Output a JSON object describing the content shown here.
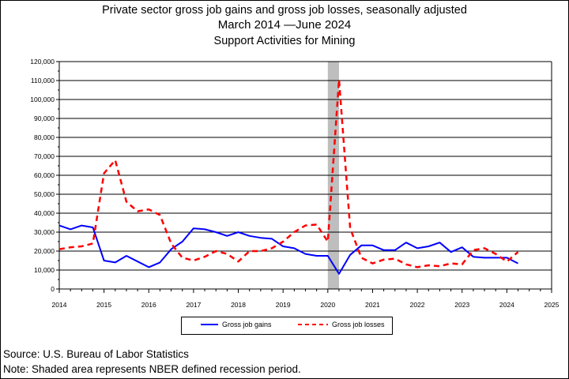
{
  "title": {
    "line1": "Private sector gross job gains and gross job losses, seasonally adjusted",
    "line2": "March 2014 —June 2024",
    "line3": "Support Activities for Mining"
  },
  "colors": {
    "gains": "#0000ff",
    "losses": "#ff0000",
    "recession": "#bebebe",
    "grid": "#000000"
  },
  "legend": {
    "gains_label": "Gross job gains",
    "losses_label": "Gross job losses"
  },
  "footnotes": {
    "source": "Source: U.S. Bureau of Labor Statistics",
    "note": "Note: Shaded area represents NBER defined recession period."
  },
  "chart_data": {
    "type": "line",
    "title": "Private sector gross job gains and gross job losses, seasonally adjusted",
    "subtitle": "March 2014 —June 2024 — Support Activities for Mining",
    "xlabel": "",
    "ylabel": "",
    "xlim": [
      2014,
      2025
    ],
    "ylim": [
      0,
      120000
    ],
    "x_ticks": [
      2014,
      2015,
      2016,
      2017,
      2018,
      2019,
      2020,
      2021,
      2022,
      2023,
      2024,
      2025
    ],
    "y_ticks": [
      0,
      10000,
      20000,
      30000,
      40000,
      50000,
      60000,
      70000,
      80000,
      90000,
      100000,
      110000,
      120000
    ],
    "y_tick_labels": [
      "0",
      "10,000",
      "20,000",
      "30,000",
      "40,000",
      "50,000",
      "60,000",
      "70,000",
      "80,000",
      "90,000",
      "100,000",
      "110,000",
      "120,000"
    ],
    "grid": "horizontal",
    "legend_position": "bottom",
    "recession_shading": [
      2020.0,
      2020.25
    ],
    "x": [
      2014.0,
      2014.25,
      2014.5,
      2014.75,
      2015.0,
      2015.25,
      2015.5,
      2015.75,
      2016.0,
      2016.25,
      2016.5,
      2016.75,
      2017.0,
      2017.25,
      2017.5,
      2017.75,
      2018.0,
      2018.25,
      2018.5,
      2018.75,
      2019.0,
      2019.25,
      2019.5,
      2019.75,
      2020.0,
      2020.25,
      2020.5,
      2020.75,
      2021.0,
      2021.25,
      2021.5,
      2021.75,
      2022.0,
      2022.25,
      2022.5,
      2022.75,
      2023.0,
      2023.25,
      2023.5,
      2023.75,
      2024.0,
      2024.25
    ],
    "series": [
      {
        "name": "Gross job gains",
        "style": "solid",
        "values": [
          33500,
          31500,
          33500,
          32500,
          15000,
          14000,
          17500,
          14500,
          11500,
          14000,
          21000,
          25000,
          32000,
          31500,
          30000,
          28000,
          30000,
          28000,
          27000,
          26500,
          22500,
          21500,
          18500,
          17500,
          17500,
          8000,
          18000,
          23000,
          23000,
          20500,
          20500,
          24500,
          21500,
          22500,
          24500,
          19500,
          22000,
          17000,
          16500,
          16500,
          16500,
          13500
        ]
      },
      {
        "name": "Gross job losses",
        "style": "dashed",
        "values": [
          21000,
          22000,
          22500,
          24000,
          61000,
          68000,
          46000,
          41000,
          42000,
          39000,
          24000,
          16500,
          15000,
          17000,
          20000,
          18500,
          14500,
          20000,
          20000,
          21500,
          25000,
          30000,
          33500,
          34000,
          25000,
          110500,
          32000,
          16500,
          13500,
          15500,
          16000,
          13000,
          11500,
          12500,
          12000,
          13500,
          13000,
          20500,
          21500,
          18500,
          14500,
          19500
        ]
      }
    ]
  }
}
